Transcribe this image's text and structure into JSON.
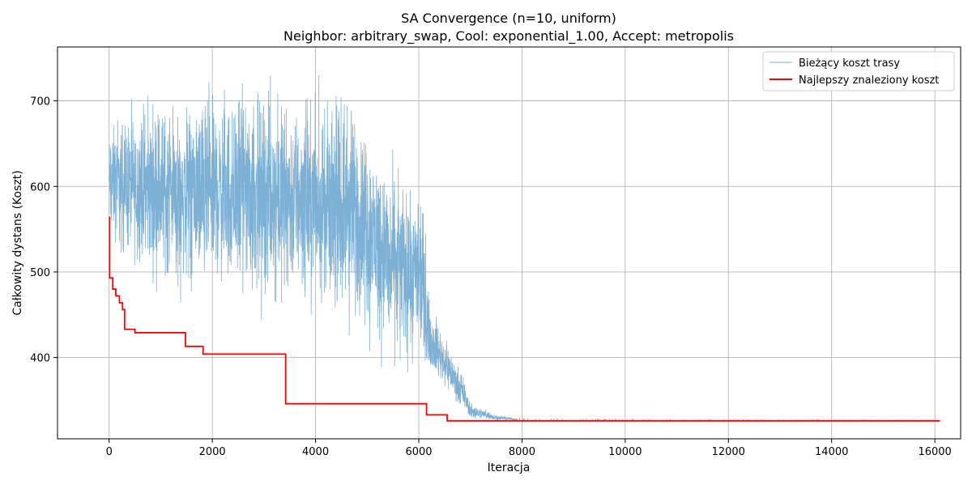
{
  "chart_data": {
    "type": "line",
    "title": "SA Convergence (n=10, uniform)",
    "subtitle": "Neighbor: arbitrary_swap, Cool: exponential_1.00, Accept: metropolis",
    "xlabel": "Iteracja",
    "ylabel": "Całkowity dystans (Koszt)",
    "xlim": [
      -1000,
      16500
    ],
    "ylim": [
      305,
      763
    ],
    "xticks": [
      0,
      2000,
      4000,
      6000,
      8000,
      10000,
      12000,
      14000,
      16000
    ],
    "yticks": [
      400,
      500,
      600,
      700
    ],
    "grid": true,
    "legend_position": "top-right",
    "series": [
      {
        "name": "Bieżący koszt trasy",
        "color": "#76acd3",
        "style": "noisy",
        "x_end": 16100,
        "band": [
          [
            0,
            520,
            690
          ],
          [
            400,
            490,
            710
          ],
          [
            800,
            470,
            725
          ],
          [
            1500,
            455,
            730
          ],
          [
            2500,
            445,
            740
          ],
          [
            3500,
            440,
            735
          ],
          [
            4200,
            430,
            730
          ],
          [
            4700,
            420,
            720
          ],
          [
            5000,
            405,
            700
          ],
          [
            5400,
            375,
            660
          ],
          [
            5800,
            380,
            620
          ],
          [
            6100,
            385,
            590
          ],
          [
            6200,
            378,
            470
          ],
          [
            6450,
            360,
            440
          ],
          [
            6600,
            350,
            420
          ],
          [
            6800,
            340,
            390
          ],
          [
            7000,
            326,
            350
          ],
          [
            7500,
            326,
            334
          ],
          [
            8000,
            326,
            328
          ],
          [
            10000,
            326,
            327
          ],
          [
            16100,
            326,
            326
          ]
        ]
      },
      {
        "name": "Najlepszy znaleziony koszt",
        "color": "#ff0000",
        "style": "step",
        "points": [
          [
            0,
            564
          ],
          [
            10,
            493
          ],
          [
            70,
            480
          ],
          [
            130,
            472
          ],
          [
            200,
            464
          ],
          [
            260,
            456
          ],
          [
            300,
            433
          ],
          [
            500,
            429
          ],
          [
            1480,
            413
          ],
          [
            1820,
            404
          ],
          [
            3420,
            346
          ],
          [
            6150,
            333
          ],
          [
            6550,
            326
          ],
          [
            16100,
            326
          ]
        ]
      }
    ]
  }
}
